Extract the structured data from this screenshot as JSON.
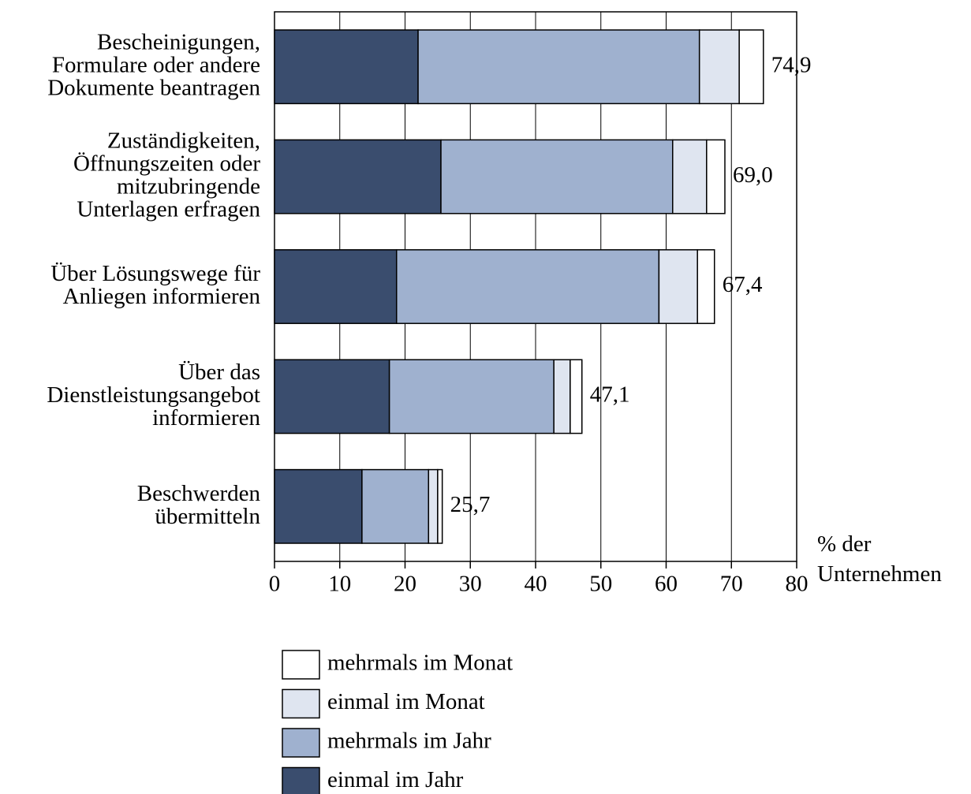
{
  "chart_data": {
    "type": "stacked-barh",
    "categories": [
      "Bescheinigungen,\nFormulare oder andere\nDokumente beantragen",
      "Zuständigkeiten,\nÖffnungszeiten oder\nmitzubringende\nUnterlagen erfragen",
      "Über Lösungswege für\nAnliegen informieren",
      "Über das\nDienstleistungsangebot\ninformieren",
      "Beschwerden\nübermitteln"
    ],
    "series": [
      {
        "name": "einmal im Jahr",
        "color": "#3a4d6e",
        "values": [
          22.0,
          25.5,
          18.7,
          17.6,
          13.4
        ]
      },
      {
        "name": "mehrmals im Jahr",
        "color": "#9fb1cf",
        "values": [
          43.1,
          35.5,
          40.2,
          25.2,
          10.2
        ]
      },
      {
        "name": "einmal im Monat",
        "color": "#dfe5f0",
        "values": [
          6.1,
          5.2,
          5.9,
          2.5,
          1.4
        ]
      },
      {
        "name": "mehrmals im Monat",
        "color": "#ffffff",
        "values": [
          3.7,
          2.8,
          2.6,
          1.8,
          0.7
        ]
      }
    ],
    "totals": [
      74.9,
      69.0,
      67.4,
      47.1,
      25.7
    ],
    "total_labels": [
      "74,9",
      "69,0",
      "67,4",
      "47,1",
      "25,7"
    ],
    "x_label": "% der\nUnternehmen",
    "xlim": [
      0,
      80
    ],
    "xticks": [
      0,
      10,
      20,
      30,
      40,
      50,
      60,
      70,
      80
    ],
    "grid": true
  }
}
